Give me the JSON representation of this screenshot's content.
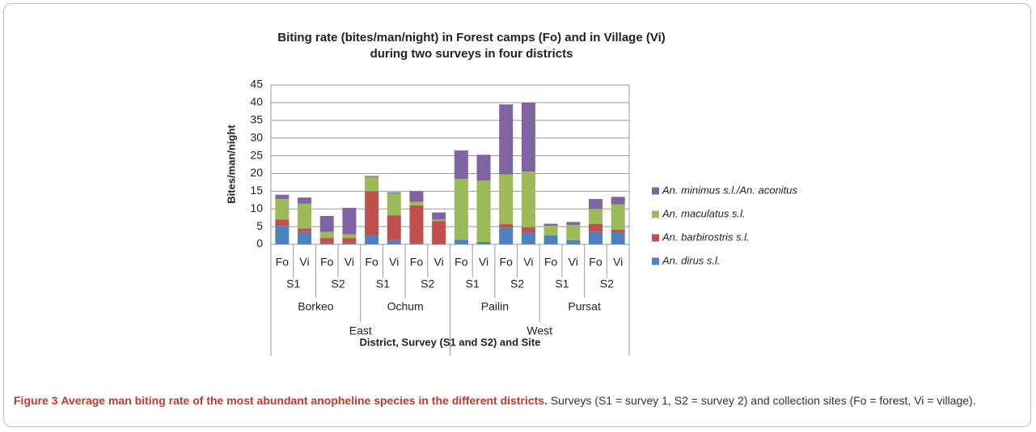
{
  "chart_data": {
    "type": "stacked_bar",
    "title": [
      "Biting rate (bites/man/night) in Forest camps (Fo) and in Village (Vi)",
      "during two surveys in four districts"
    ],
    "y_label": "Bites/man/night",
    "x_label": "District, Survey (S1 and S2) and Site",
    "categories": [
      "Fo",
      "Vi",
      "Fo",
      "Vi",
      "Fo",
      "Vi",
      "Fo",
      "Vi",
      "Fo",
      "Vi",
      "Fo",
      "Vi",
      "Fo",
      "Vi",
      "Fo",
      "Vi"
    ],
    "surveys": [
      "S1",
      "S2",
      "S1",
      "S2",
      "S1",
      "S2",
      "S1",
      "S2"
    ],
    "districts": [
      "Borkeo",
      "Ochum",
      "Pailin",
      "Pursat"
    ],
    "regions": [
      "East",
      "West"
    ],
    "series": [
      {
        "name": "An. dirus s.l.",
        "color": "#4f81bd",
        "values": [
          5.2,
          3.5,
          0.3,
          0.3,
          2.5,
          1.2,
          0.3,
          0,
          1.3,
          0.7,
          4.7,
          3.3,
          2.5,
          1.2,
          3.5,
          3.3
        ]
      },
      {
        "name": "An. barbirostris s.l.",
        "color": "#c0504d",
        "values": [
          1.8,
          1,
          1.5,
          1.5,
          12.5,
          7,
          10.7,
          6.6,
          0,
          0,
          1,
          1.5,
          0,
          0,
          2.3,
          0.8
        ]
      },
      {
        "name": "An. maculatus s.l.",
        "color": "#9bbb59",
        "values": [
          5.8,
          7,
          1.7,
          1,
          4,
          6.2,
          1,
          0.4,
          17.2,
          17.3,
          14,
          15.7,
          2.7,
          4.3,
          4.2,
          7.2
        ]
      },
      {
        "name": "An. minimus s.l./An. aconitus",
        "color": "#8064a2",
        "values": [
          1.2,
          1.7,
          4.5,
          7.5,
          0.3,
          0.3,
          3,
          2,
          8,
          7.3,
          19.8,
          19.5,
          0.6,
          0.8,
          2.8,
          2.1
        ]
      }
    ],
    "ylim": [
      0,
      45
    ],
    "yticks": [
      0,
      5,
      10,
      15,
      20,
      25,
      30,
      35,
      40,
      45
    ],
    "grid": true,
    "legend": "right"
  },
  "caption": {
    "label": "Figure 3",
    "title": "Average man biting rate of the most abundant anopheline species in the different districts.",
    "text": "Surveys (S1 = survey 1, S2 = survey 2) and collection sites (Fo = forest, Vi = village)."
  }
}
